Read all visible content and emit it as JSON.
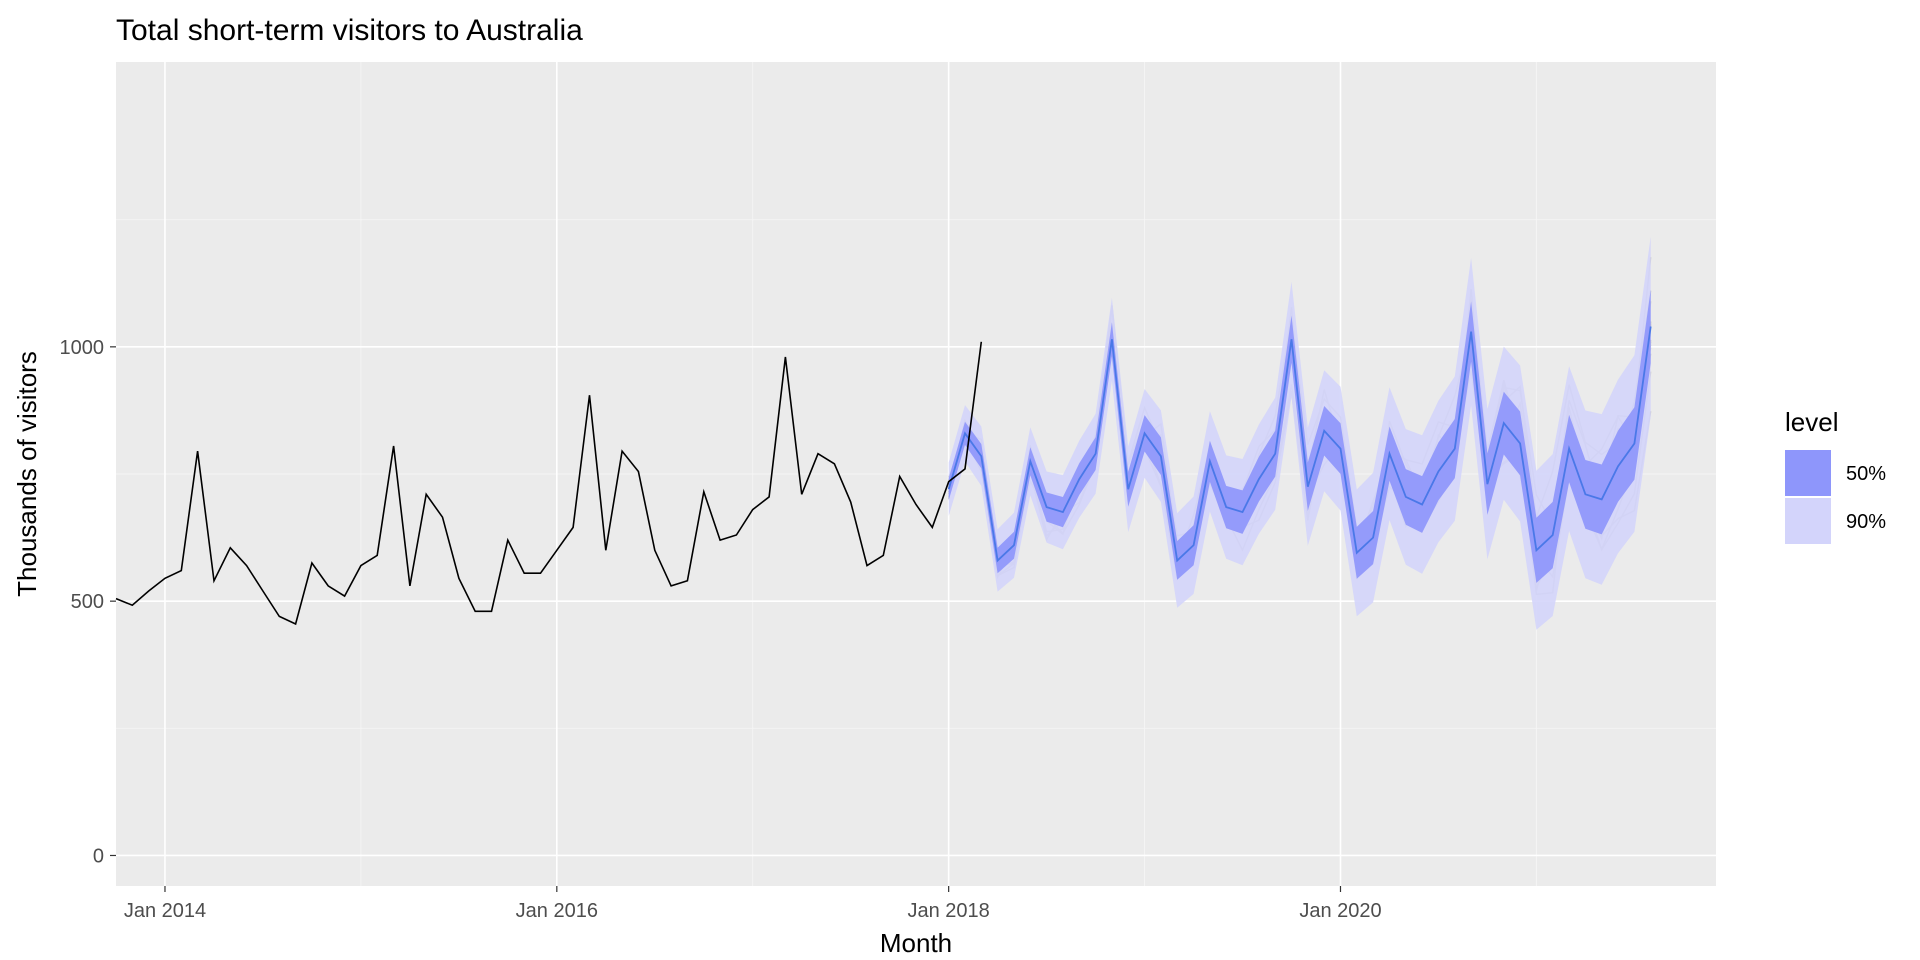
{
  "chart_data": {
    "type": "line",
    "title": "Total short-term visitors to Australia",
    "xlabel": "Month",
    "ylabel": "Thousands of visitors",
    "xlim": [
      "2013-10",
      "2021-12"
    ],
    "ylim": [
      -60,
      1560
    ],
    "x_ticks": [
      {
        "date": "2014-01",
        "label": "Jan 2014"
      },
      {
        "date": "2016-01",
        "label": "Jan 2016"
      },
      {
        "date": "2018-01",
        "label": "Jan 2018"
      },
      {
        "date": "2020-01",
        "label": "Jan 2020"
      }
    ],
    "y_ticks": [
      {
        "value": 0,
        "label": "0"
      },
      {
        "value": 500,
        "label": "500"
      },
      {
        "value": 1000,
        "label": "1000"
      }
    ],
    "grid": true,
    "background": "#ebebeb",
    "history": {
      "name": "",
      "color": "#000000",
      "start": "2013-10",
      "values": [
        505,
        492,
        520,
        545,
        560,
        795,
        540,
        605,
        570,
        520,
        470,
        455,
        575,
        530,
        510,
        570,
        590,
        805,
        530,
        710,
        665,
        545,
        480,
        480,
        620,
        555,
        555,
        600,
        645,
        905,
        600,
        795,
        755,
        600,
        530,
        540,
        715,
        620,
        630,
        680,
        705,
        980,
        710,
        790,
        770,
        695,
        570,
        590,
        745,
        690,
        645,
        735,
        760,
        1010
      ]
    },
    "forecast": {
      "start": "2018-01",
      "mean_color": "#4a78e8",
      "mean": [
        720,
        830,
        785,
        580,
        610,
        775,
        685,
        675,
        740,
        790,
        1015,
        720,
        830,
        785,
        580,
        610,
        775,
        685,
        675,
        740,
        790,
        1015,
        725,
        835,
        800,
        595,
        625,
        790,
        705,
        690,
        755,
        800,
        1030,
        730,
        850,
        810,
        600,
        630,
        800,
        710,
        700,
        765,
        810,
        1040
      ]
    },
    "level_legend": {
      "title": "level",
      "position": "right",
      "items": [
        {
          "label": "50%",
          "color": "#8e96fb"
        },
        {
          "label": "90%",
          "color": "#d3d4fb"
        }
      ]
    },
    "simulation_paths_color": "#c8c8c8"
  }
}
